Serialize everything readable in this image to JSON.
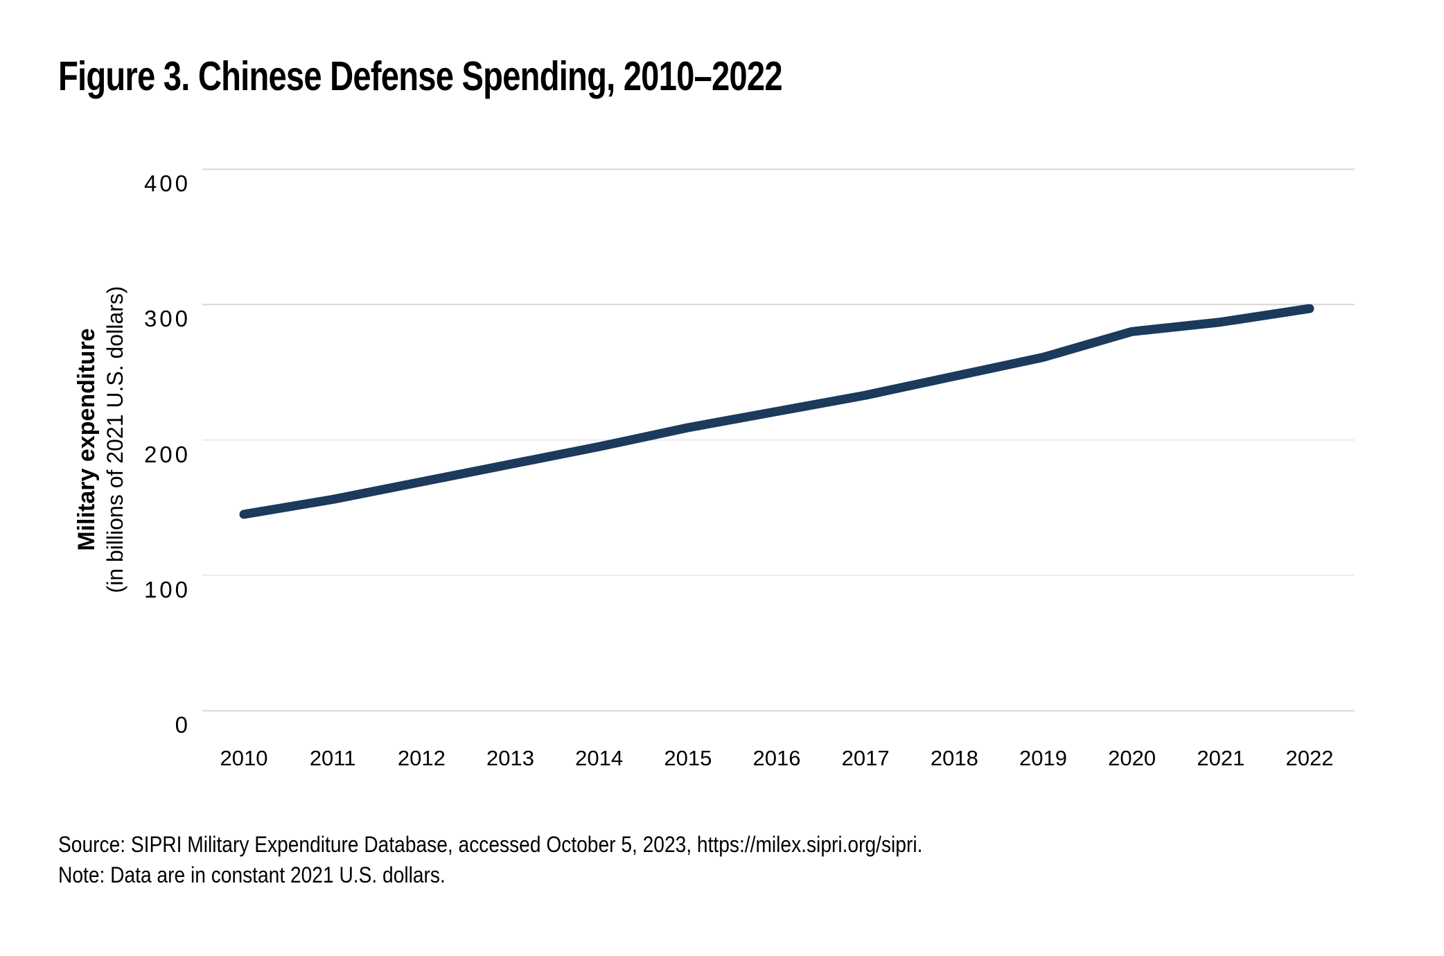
{
  "figure": {
    "title": "Figure 3. Chinese Defense Spending, 2010–2022",
    "source": "Source: SIPRI Military Expenditure Database, accessed October 5, 2023, https://milex.sipri.org/sipri.",
    "note": "Note: Data are in constant 2021 U.S. dollars."
  },
  "chart_data": {
    "type": "line",
    "title": "Figure 3. Chinese Defense Spending, 2010–2022",
    "x": [
      2010,
      2011,
      2012,
      2013,
      2014,
      2015,
      2016,
      2017,
      2018,
      2019,
      2020,
      2021,
      2022
    ],
    "series": [
      {
        "name": "Chinese military expenditure",
        "values": [
          145,
          156,
          169,
          182,
          195,
          209,
          221,
          233,
          247,
          261,
          280,
          287,
          297
        ],
        "color": "#1b3a5c"
      }
    ],
    "xlabel": "",
    "ylabel": "Military expenditure",
    "ylabel_sub": "(in billions of 2021 U.S. dollars)",
    "yticks": [
      0,
      100,
      200,
      300,
      400
    ],
    "ylim": [
      0,
      400
    ],
    "grid": "horizontal-only",
    "grid_color": "#d8d8d8",
    "text_color": "#000000",
    "legend": "none",
    "line_width": 13
  }
}
